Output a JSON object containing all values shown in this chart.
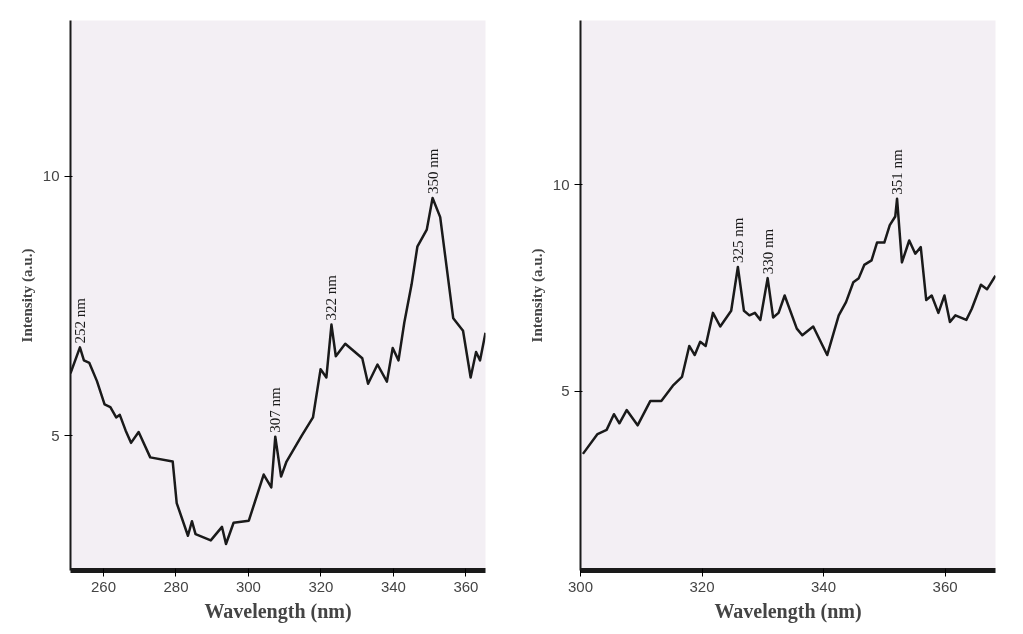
{
  "chart_data": [
    {
      "type": "line",
      "xlabel": "Wavelength (nm)",
      "ylabel": "Intensity (a.u.)",
      "xlim": [
        250.9,
        365.4
      ],
      "ylim": [
        2.4,
        13
      ],
      "xticks": [
        260,
        280,
        300,
        320,
        340,
        360
      ],
      "yticks": [
        5,
        10
      ],
      "x": [
        250.9,
        253.5,
        254.6,
        256.1,
        258.2,
        260.3,
        261.9,
        263.5,
        264.5,
        266.1,
        267.6,
        269.7,
        272.9,
        279.1,
        280.2,
        283.3,
        284.4,
        285.4,
        289.6,
        292.7,
        293.8,
        295.9,
        300.1,
        304.2,
        306.3,
        307.4,
        309.0,
        310.5,
        314.7,
        317.8,
        319.9,
        321.5,
        322.9,
        324.1,
        326.7,
        331.4,
        333.0,
        335.6,
        338.2,
        339.8,
        341.4,
        343.0,
        345.0,
        346.6,
        349.2,
        350.8,
        352.9,
        356.5,
        359.2,
        361.3,
        362.8,
        363.9,
        365.4
      ],
      "series": [
        {
          "color": "#1a1a1a",
          "values": [
            6.2,
            6.7,
            6.45,
            6.4,
            6.05,
            5.6,
            5.55,
            5.35,
            5.4,
            5.1,
            4.86,
            5.07,
            4.58,
            4.5,
            3.7,
            3.07,
            3.35,
            3.1,
            2.98,
            3.24,
            2.91,
            3.32,
            3.36,
            4.25,
            4.0,
            4.98,
            4.21,
            4.5,
            5.0,
            5.35,
            6.28,
            6.12,
            7.14,
            6.53,
            6.77,
            6.49,
            6.0,
            6.37,
            6.04,
            6.69,
            6.45,
            7.18,
            7.91,
            8.64,
            8.97,
            9.58,
            9.21,
            7.26,
            7.02,
            6.12,
            6.61,
            6.45,
            6.98
          ]
        }
      ],
      "annotations": [
        {
          "text": "252 nm",
          "x": 253.5,
          "y": 6.7
        },
        {
          "text": "307 nm",
          "x": 307.4,
          "y": 4.98
        },
        {
          "text": "322 nm",
          "x": 322.9,
          "y": 7.14
        },
        {
          "text": "350 nm",
          "x": 350.8,
          "y": 9.58
        }
      ]
    },
    {
      "type": "line",
      "xlabel": "Wavelength (nm)",
      "ylabel": "Intensity (a.u.)",
      "xlim": [
        300,
        368.3
      ],
      "ylim": [
        0.67,
        13.97
      ],
      "xticks": [
        300,
        320,
        340,
        360
      ],
      "yticks": [
        5,
        10
      ],
      "x": [
        300.4,
        302.8,
        304.3,
        305.5,
        306.4,
        307.6,
        309.4,
        311.5,
        313.3,
        315.2,
        316.7,
        317.9,
        318.8,
        319.7,
        320.6,
        321.8,
        323.0,
        324.8,
        325.9,
        326.9,
        327.8,
        328.7,
        329.6,
        330.8,
        331.7,
        332.6,
        333.6,
        335.6,
        336.5,
        338.3,
        340.6,
        342.5,
        343.7,
        344.9,
        345.8,
        346.7,
        347.9,
        348.8,
        350.0,
        350.9,
        351.8,
        352.1,
        352.9,
        354.1,
        355.1,
        356.0,
        356.9,
        357.8,
        358.9,
        359.9,
        360.8,
        361.7,
        363.5,
        364.4,
        365.9,
        366.9,
        368.3
      ],
      "series": [
        {
          "color": "#1a1a1a",
          "values": [
            3.49,
            3.97,
            4.07,
            4.45,
            4.23,
            4.55,
            4.18,
            4.77,
            4.77,
            5.14,
            5.35,
            6.1,
            5.88,
            6.2,
            6.1,
            6.9,
            6.57,
            6.95,
            8.01,
            6.95,
            6.84,
            6.9,
            6.73,
            7.74,
            6.79,
            6.9,
            7.32,
            6.52,
            6.36,
            6.57,
            5.88,
            6.84,
            7.16,
            7.64,
            7.74,
            8.06,
            8.17,
            8.6,
            8.6,
            9.02,
            9.23,
            9.66,
            8.12,
            8.65,
            8.33,
            8.49,
            7.21,
            7.32,
            6.9,
            7.32,
            6.68,
            6.84,
            6.73,
            7.0,
            7.58,
            7.47,
            7.8
          ]
        }
      ],
      "annotations": [
        {
          "text": "325 nm",
          "x": 325.9,
          "y": 8.01
        },
        {
          "text": "330 nm",
          "x": 330.8,
          "y": 7.74
        },
        {
          "text": "351 nm",
          "x": 352.1,
          "y": 9.66
        }
      ]
    }
  ]
}
